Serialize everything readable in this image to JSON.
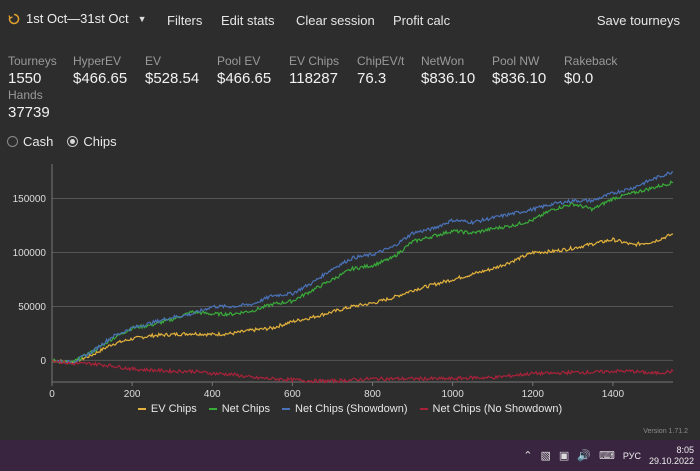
{
  "topbar": {
    "date_range": "1st Oct—31st Oct",
    "menu": [
      {
        "label": "Filters",
        "x": 167
      },
      {
        "label": "Edit stats",
        "x": 221
      },
      {
        "label": "Clear session",
        "x": 296
      },
      {
        "label": "Profit calc",
        "x": 393
      }
    ],
    "save_label": "Save tourneys"
  },
  "stats": [
    {
      "label": "Tourneys",
      "value": "1550"
    },
    {
      "label": "HyperEV",
      "value": "$466.65"
    },
    {
      "label": "EV",
      "value": "$528.54"
    },
    {
      "label": "Pool EV",
      "value": "$466.65"
    },
    {
      "label": "EV Chips",
      "value": "118287"
    },
    {
      "label": "ChipEV/t",
      "value": "76.3"
    },
    {
      "label": "NetWon",
      "value": "$836.10"
    },
    {
      "label": "Pool NW",
      "value": "$836.10"
    },
    {
      "label": "Rakeback",
      "value": "$0.0"
    }
  ],
  "hands": {
    "label": "Hands",
    "value": "37739"
  },
  "mode": {
    "options": [
      "Cash",
      "Chips"
    ],
    "selected": "Chips"
  },
  "chart_data": {
    "type": "line",
    "x_ticks": [
      0,
      200,
      400,
      600,
      800,
      1000,
      1200,
      1400
    ],
    "y_ticks": [
      0,
      50000,
      100000,
      150000
    ],
    "xlim": [
      0,
      1550
    ],
    "ylim": [
      -20000,
      182000
    ],
    "grid": "horizontal",
    "legend_position": "bottom",
    "series": [
      {
        "name": "EV Chips",
        "color": "#e3b23c",
        "points": [
          [
            0,
            0
          ],
          [
            50,
            -2000
          ],
          [
            100,
            5000
          ],
          [
            150,
            15000
          ],
          [
            200,
            20000
          ],
          [
            250,
            23000
          ],
          [
            300,
            24000
          ],
          [
            350,
            25000
          ],
          [
            400,
            24000
          ],
          [
            450,
            25000
          ],
          [
            500,
            28000
          ],
          [
            550,
            30000
          ],
          [
            600,
            36000
          ],
          [
            650,
            40000
          ],
          [
            700,
            45000
          ],
          [
            750,
            50000
          ],
          [
            800,
            53000
          ],
          [
            850,
            58000
          ],
          [
            900,
            65000
          ],
          [
            950,
            70000
          ],
          [
            1000,
            75000
          ],
          [
            1050,
            80000
          ],
          [
            1100,
            85000
          ],
          [
            1150,
            92000
          ],
          [
            1200,
            100000
          ],
          [
            1250,
            101000
          ],
          [
            1300,
            104000
          ],
          [
            1350,
            108000
          ],
          [
            1400,
            112000
          ],
          [
            1450,
            107000
          ],
          [
            1500,
            110000
          ],
          [
            1550,
            117000
          ]
        ]
      },
      {
        "name": "Net Chips",
        "color": "#3aaa3a",
        "points": [
          [
            0,
            0
          ],
          [
            50,
            -2000
          ],
          [
            100,
            8000
          ],
          [
            150,
            20000
          ],
          [
            200,
            30000
          ],
          [
            250,
            33000
          ],
          [
            300,
            38000
          ],
          [
            350,
            45000
          ],
          [
            400,
            43000
          ],
          [
            450,
            43000
          ],
          [
            500,
            46000
          ],
          [
            550,
            52000
          ],
          [
            600,
            55000
          ],
          [
            650,
            65000
          ],
          [
            700,
            75000
          ],
          [
            750,
            85000
          ],
          [
            800,
            88000
          ],
          [
            850,
            95000
          ],
          [
            900,
            110000
          ],
          [
            950,
            115000
          ],
          [
            1000,
            120000
          ],
          [
            1050,
            118000
          ],
          [
            1100,
            122000
          ],
          [
            1150,
            125000
          ],
          [
            1200,
            130000
          ],
          [
            1250,
            140000
          ],
          [
            1300,
            145000
          ],
          [
            1350,
            140000
          ],
          [
            1400,
            150000
          ],
          [
            1450,
            155000
          ],
          [
            1500,
            160000
          ],
          [
            1550,
            165000
          ]
        ]
      },
      {
        "name": "Net Chips (Showdown)",
        "color": "#4a72b8",
        "points": [
          [
            0,
            0
          ],
          [
            50,
            -2000
          ],
          [
            100,
            8000
          ],
          [
            150,
            22000
          ],
          [
            200,
            30000
          ],
          [
            250,
            35000
          ],
          [
            300,
            40000
          ],
          [
            350,
            43000
          ],
          [
            400,
            50000
          ],
          [
            450,
            50000
          ],
          [
            500,
            52000
          ],
          [
            550,
            60000
          ],
          [
            600,
            62000
          ],
          [
            650,
            72000
          ],
          [
            700,
            85000
          ],
          [
            750,
            95000
          ],
          [
            800,
            98000
          ],
          [
            850,
            105000
          ],
          [
            900,
            118000
          ],
          [
            950,
            122000
          ],
          [
            1000,
            130000
          ],
          [
            1050,
            128000
          ],
          [
            1100,
            132000
          ],
          [
            1150,
            136000
          ],
          [
            1200,
            140000
          ],
          [
            1250,
            145000
          ],
          [
            1300,
            148000
          ],
          [
            1350,
            148000
          ],
          [
            1400,
            155000
          ],
          [
            1450,
            160000
          ],
          [
            1500,
            168000
          ],
          [
            1550,
            175000
          ]
        ]
      },
      {
        "name": "Net Chips (No Showdown)",
        "color": "#a8233a",
        "points": [
          [
            0,
            0
          ],
          [
            50,
            -3000
          ],
          [
            100,
            -3000
          ],
          [
            150,
            -5000
          ],
          [
            200,
            -8000
          ],
          [
            250,
            -9000
          ],
          [
            300,
            -10000
          ],
          [
            350,
            -10000
          ],
          [
            400,
            -12000
          ],
          [
            450,
            -13000
          ],
          [
            500,
            -16000
          ],
          [
            550,
            -17000
          ],
          [
            600,
            -18000
          ],
          [
            650,
            -19000
          ],
          [
            700,
            -19000
          ],
          [
            750,
            -18000
          ],
          [
            800,
            -17000
          ],
          [
            850,
            -17000
          ],
          [
            900,
            -17000
          ],
          [
            950,
            -17000
          ],
          [
            1000,
            -17000
          ],
          [
            1050,
            -16000
          ],
          [
            1100,
            -16000
          ],
          [
            1150,
            -14000
          ],
          [
            1200,
            -12000
          ],
          [
            1250,
            -12000
          ],
          [
            1300,
            -11000
          ],
          [
            1350,
            -11000
          ],
          [
            1400,
            -10000
          ],
          [
            1450,
            -10000
          ],
          [
            1500,
            -12000
          ],
          [
            1550,
            -10000
          ]
        ]
      }
    ]
  },
  "version": "Version 1.71.2",
  "taskbar": {
    "lang": "РУС",
    "time": "8:05",
    "date": "29.10.2022"
  }
}
